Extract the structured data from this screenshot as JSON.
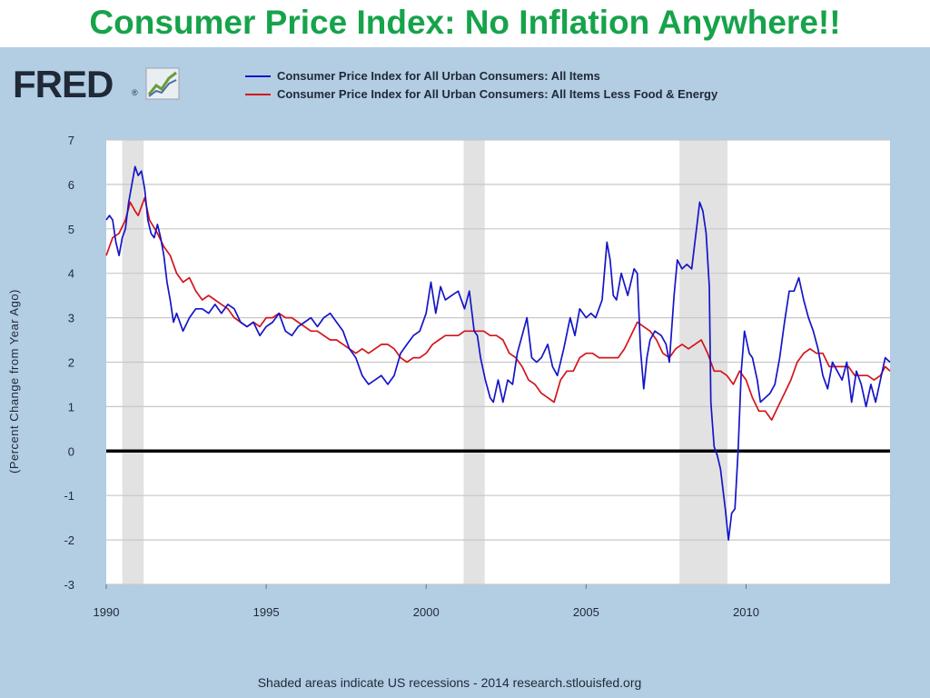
{
  "slide": {
    "title": "Consumer Price Index: No Inflation Anywhere!!"
  },
  "logo": {
    "text": "FRED",
    "mark": "®",
    "icon": "trend-chart-icon"
  },
  "colors": {
    "title_green": "#16a34a",
    "background_blue": "#b3cde3",
    "series_all_items": "#1515c8",
    "series_core": "#d4141c",
    "recession_shade": "#e2e2e2",
    "grid": "#c8c8c8",
    "zero_line": "#000000"
  },
  "footnote": "Shaded areas indicate US recessions - 2014 research.stlouisfed.org",
  "chart_data": {
    "type": "line",
    "title": "",
    "xlabel": "",
    "ylabel": "(Percent Change from Year Ago)",
    "xlim": [
      1990,
      2014.5
    ],
    "ylim": [
      -3,
      7
    ],
    "yticks": [
      7,
      6,
      5,
      4,
      3,
      2,
      1,
      0,
      -1,
      -2,
      -3
    ],
    "xticks": [
      1990,
      1995,
      2000,
      2005,
      2010
    ],
    "grid": true,
    "legend_position": "top",
    "zero_line": true,
    "recessions": [
      [
        1990.5,
        1991.17
      ],
      [
        2001.17,
        2001.83
      ],
      [
        2007.92,
        2009.42
      ]
    ],
    "series": [
      {
        "name": "Consumer Price Index for All Urban Consumers: All Items",
        "color": "#1515c8",
        "points": [
          [
            1990.0,
            5.2
          ],
          [
            1990.1,
            5.3
          ],
          [
            1990.2,
            5.2
          ],
          [
            1990.3,
            4.7
          ],
          [
            1990.4,
            4.4
          ],
          [
            1990.5,
            4.8
          ],
          [
            1990.6,
            5.0
          ],
          [
            1990.7,
            5.6
          ],
          [
            1990.8,
            6.0
          ],
          [
            1990.9,
            6.4
          ],
          [
            1991.0,
            6.2
          ],
          [
            1991.1,
            6.3
          ],
          [
            1991.2,
            5.9
          ],
          [
            1991.3,
            5.2
          ],
          [
            1991.4,
            4.9
          ],
          [
            1991.5,
            4.8
          ],
          [
            1991.6,
            5.1
          ],
          [
            1991.7,
            4.8
          ],
          [
            1991.8,
            4.4
          ],
          [
            1991.9,
            3.8
          ],
          [
            1992.0,
            3.4
          ],
          [
            1992.1,
            2.9
          ],
          [
            1992.2,
            3.1
          ],
          [
            1992.3,
            2.9
          ],
          [
            1992.4,
            2.7
          ],
          [
            1992.6,
            3.0
          ],
          [
            1992.8,
            3.2
          ],
          [
            1993.0,
            3.2
          ],
          [
            1993.2,
            3.1
          ],
          [
            1993.4,
            3.3
          ],
          [
            1993.6,
            3.1
          ],
          [
            1993.8,
            3.3
          ],
          [
            1994.0,
            3.2
          ],
          [
            1994.2,
            2.9
          ],
          [
            1994.4,
            2.8
          ],
          [
            1994.6,
            2.9
          ],
          [
            1994.8,
            2.6
          ],
          [
            1995.0,
            2.8
          ],
          [
            1995.2,
            2.9
          ],
          [
            1995.4,
            3.1
          ],
          [
            1995.6,
            2.7
          ],
          [
            1995.8,
            2.6
          ],
          [
            1996.0,
            2.8
          ],
          [
            1996.2,
            2.9
          ],
          [
            1996.4,
            3.0
          ],
          [
            1996.6,
            2.8
          ],
          [
            1996.8,
            3.0
          ],
          [
            1997.0,
            3.1
          ],
          [
            1997.2,
            2.9
          ],
          [
            1997.4,
            2.7
          ],
          [
            1997.6,
            2.3
          ],
          [
            1997.8,
            2.1
          ],
          [
            1998.0,
            1.7
          ],
          [
            1998.2,
            1.5
          ],
          [
            1998.4,
            1.6
          ],
          [
            1998.6,
            1.7
          ],
          [
            1998.8,
            1.5
          ],
          [
            1999.0,
            1.7
          ],
          [
            1999.2,
            2.2
          ],
          [
            1999.4,
            2.4
          ],
          [
            1999.6,
            2.6
          ],
          [
            1999.8,
            2.7
          ],
          [
            2000.0,
            3.1
          ],
          [
            2000.15,
            3.8
          ],
          [
            2000.3,
            3.1
          ],
          [
            2000.45,
            3.7
          ],
          [
            2000.6,
            3.4
          ],
          [
            2000.8,
            3.5
          ],
          [
            2001.0,
            3.6
          ],
          [
            2001.2,
            3.2
          ],
          [
            2001.35,
            3.6
          ],
          [
            2001.5,
            2.7
          ],
          [
            2001.6,
            2.6
          ],
          [
            2001.7,
            2.1
          ],
          [
            2001.85,
            1.6
          ],
          [
            2002.0,
            1.2
          ],
          [
            2002.1,
            1.1
          ],
          [
            2002.25,
            1.6
          ],
          [
            2002.4,
            1.1
          ],
          [
            2002.55,
            1.6
          ],
          [
            2002.7,
            1.5
          ],
          [
            2002.85,
            2.2
          ],
          [
            2003.0,
            2.6
          ],
          [
            2003.15,
            3.0
          ],
          [
            2003.3,
            2.1
          ],
          [
            2003.45,
            2.0
          ],
          [
            2003.6,
            2.1
          ],
          [
            2003.8,
            2.4
          ],
          [
            2003.95,
            1.9
          ],
          [
            2004.1,
            1.7
          ],
          [
            2004.3,
            2.3
          ],
          [
            2004.5,
            3.0
          ],
          [
            2004.65,
            2.6
          ],
          [
            2004.8,
            3.2
          ],
          [
            2005.0,
            3.0
          ],
          [
            2005.15,
            3.1
          ],
          [
            2005.3,
            3.0
          ],
          [
            2005.5,
            3.4
          ],
          [
            2005.65,
            4.7
          ],
          [
            2005.75,
            4.3
          ],
          [
            2005.85,
            3.5
          ],
          [
            2005.95,
            3.4
          ],
          [
            2006.1,
            4.0
          ],
          [
            2006.3,
            3.5
          ],
          [
            2006.5,
            4.1
          ],
          [
            2006.6,
            4.0
          ],
          [
            2006.7,
            2.3
          ],
          [
            2006.8,
            1.4
          ],
          [
            2006.9,
            2.1
          ],
          [
            2007.0,
            2.5
          ],
          [
            2007.15,
            2.7
          ],
          [
            2007.35,
            2.6
          ],
          [
            2007.5,
            2.4
          ],
          [
            2007.6,
            2.0
          ],
          [
            2007.75,
            3.5
          ],
          [
            2007.85,
            4.3
          ],
          [
            2008.0,
            4.1
          ],
          [
            2008.15,
            4.2
          ],
          [
            2008.3,
            4.1
          ],
          [
            2008.45,
            5.0
          ],
          [
            2008.55,
            5.6
          ],
          [
            2008.65,
            5.4
          ],
          [
            2008.75,
            4.9
          ],
          [
            2008.85,
            3.7
          ],
          [
            2008.9,
            1.1
          ],
          [
            2009.0,
            0.1
          ],
          [
            2009.1,
            -0.1
          ],
          [
            2009.2,
            -0.4
          ],
          [
            2009.35,
            -1.3
          ],
          [
            2009.45,
            -2.0
          ],
          [
            2009.55,
            -1.4
          ],
          [
            2009.65,
            -1.3
          ],
          [
            2009.75,
            0.0
          ],
          [
            2009.85,
            1.8
          ],
          [
            2009.95,
            2.7
          ],
          [
            2010.1,
            2.2
          ],
          [
            2010.2,
            2.1
          ],
          [
            2010.35,
            1.6
          ],
          [
            2010.45,
            1.1
          ],
          [
            2010.6,
            1.2
          ],
          [
            2010.75,
            1.3
          ],
          [
            2010.9,
            1.5
          ],
          [
            2011.05,
            2.1
          ],
          [
            2011.2,
            2.9
          ],
          [
            2011.35,
            3.6
          ],
          [
            2011.5,
            3.6
          ],
          [
            2011.65,
            3.9
          ],
          [
            2011.8,
            3.4
          ],
          [
            2011.95,
            3.0
          ],
          [
            2012.1,
            2.7
          ],
          [
            2012.25,
            2.3
          ],
          [
            2012.4,
            1.7
          ],
          [
            2012.55,
            1.4
          ],
          [
            2012.7,
            2.0
          ],
          [
            2012.85,
            1.8
          ],
          [
            2013.0,
            1.6
          ],
          [
            2013.15,
            2.0
          ],
          [
            2013.3,
            1.1
          ],
          [
            2013.45,
            1.8
          ],
          [
            2013.6,
            1.5
          ],
          [
            2013.75,
            1.0
          ],
          [
            2013.9,
            1.5
          ],
          [
            2014.05,
            1.1
          ],
          [
            2014.2,
            1.6
          ],
          [
            2014.35,
            2.1
          ],
          [
            2014.5,
            2.0
          ]
        ]
      },
      {
        "name": "Consumer Price Index for All Urban Consumers: All Items Less Food & Energy",
        "color": "#d4141c",
        "points": [
          [
            1990.0,
            4.4
          ],
          [
            1990.2,
            4.8
          ],
          [
            1990.4,
            4.9
          ],
          [
            1990.6,
            5.2
          ],
          [
            1990.75,
            5.6
          ],
          [
            1990.9,
            5.4
          ],
          [
            1991.0,
            5.3
          ],
          [
            1991.1,
            5.5
          ],
          [
            1991.2,
            5.7
          ],
          [
            1991.35,
            5.2
          ],
          [
            1991.6,
            4.9
          ],
          [
            1991.8,
            4.6
          ],
          [
            1992.0,
            4.4
          ],
          [
            1992.2,
            4.0
          ],
          [
            1992.4,
            3.8
          ],
          [
            1992.6,
            3.9
          ],
          [
            1992.8,
            3.6
          ],
          [
            1993.0,
            3.4
          ],
          [
            1993.2,
            3.5
          ],
          [
            1993.4,
            3.4
          ],
          [
            1993.6,
            3.3
          ],
          [
            1993.8,
            3.2
          ],
          [
            1994.0,
            3.0
          ],
          [
            1994.2,
            2.9
          ],
          [
            1994.4,
            2.8
          ],
          [
            1994.6,
            2.9
          ],
          [
            1994.8,
            2.8
          ],
          [
            1995.0,
            3.0
          ],
          [
            1995.2,
            3.0
          ],
          [
            1995.4,
            3.1
          ],
          [
            1995.6,
            3.0
          ],
          [
            1995.8,
            3.0
          ],
          [
            1996.0,
            2.9
          ],
          [
            1996.2,
            2.8
          ],
          [
            1996.4,
            2.7
          ],
          [
            1996.6,
            2.7
          ],
          [
            1996.8,
            2.6
          ],
          [
            1997.0,
            2.5
          ],
          [
            1997.2,
            2.5
          ],
          [
            1997.4,
            2.4
          ],
          [
            1997.6,
            2.3
          ],
          [
            1997.8,
            2.2
          ],
          [
            1998.0,
            2.3
          ],
          [
            1998.2,
            2.2
          ],
          [
            1998.4,
            2.3
          ],
          [
            1998.6,
            2.4
          ],
          [
            1998.8,
            2.4
          ],
          [
            1999.0,
            2.3
          ],
          [
            1999.2,
            2.1
          ],
          [
            1999.4,
            2.0
          ],
          [
            1999.6,
            2.1
          ],
          [
            1999.8,
            2.1
          ],
          [
            2000.0,
            2.2
          ],
          [
            2000.2,
            2.4
          ],
          [
            2000.4,
            2.5
          ],
          [
            2000.6,
            2.6
          ],
          [
            2000.8,
            2.6
          ],
          [
            2001.0,
            2.6
          ],
          [
            2001.2,
            2.7
          ],
          [
            2001.4,
            2.7
          ],
          [
            2001.6,
            2.7
          ],
          [
            2001.8,
            2.7
          ],
          [
            2002.0,
            2.6
          ],
          [
            2002.2,
            2.6
          ],
          [
            2002.4,
            2.5
          ],
          [
            2002.6,
            2.2
          ],
          [
            2002.8,
            2.1
          ],
          [
            2003.0,
            1.9
          ],
          [
            2003.2,
            1.6
          ],
          [
            2003.4,
            1.5
          ],
          [
            2003.6,
            1.3
          ],
          [
            2003.8,
            1.2
          ],
          [
            2004.0,
            1.1
          ],
          [
            2004.2,
            1.6
          ],
          [
            2004.4,
            1.8
          ],
          [
            2004.6,
            1.8
          ],
          [
            2004.8,
            2.1
          ],
          [
            2005.0,
            2.2
          ],
          [
            2005.2,
            2.2
          ],
          [
            2005.4,
            2.1
          ],
          [
            2005.6,
            2.1
          ],
          [
            2005.8,
            2.1
          ],
          [
            2006.0,
            2.1
          ],
          [
            2006.2,
            2.3
          ],
          [
            2006.4,
            2.6
          ],
          [
            2006.6,
            2.9
          ],
          [
            2006.8,
            2.8
          ],
          [
            2007.0,
            2.7
          ],
          [
            2007.2,
            2.5
          ],
          [
            2007.4,
            2.2
          ],
          [
            2007.6,
            2.1
          ],
          [
            2007.8,
            2.3
          ],
          [
            2008.0,
            2.4
          ],
          [
            2008.2,
            2.3
          ],
          [
            2008.4,
            2.4
          ],
          [
            2008.6,
            2.5
          ],
          [
            2008.8,
            2.2
          ],
          [
            2009.0,
            1.8
          ],
          [
            2009.2,
            1.8
          ],
          [
            2009.4,
            1.7
          ],
          [
            2009.6,
            1.5
          ],
          [
            2009.8,
            1.8
          ],
          [
            2010.0,
            1.6
          ],
          [
            2010.2,
            1.2
          ],
          [
            2010.4,
            0.9
          ],
          [
            2010.6,
            0.9
          ],
          [
            2010.8,
            0.7
          ],
          [
            2011.0,
            1.0
          ],
          [
            2011.2,
            1.3
          ],
          [
            2011.4,
            1.6
          ],
          [
            2011.6,
            2.0
          ],
          [
            2011.8,
            2.2
          ],
          [
            2012.0,
            2.3
          ],
          [
            2012.2,
            2.2
          ],
          [
            2012.4,
            2.2
          ],
          [
            2012.6,
            1.9
          ],
          [
            2012.8,
            1.9
          ],
          [
            2013.0,
            1.9
          ],
          [
            2013.2,
            1.9
          ],
          [
            2013.4,
            1.7
          ],
          [
            2013.6,
            1.7
          ],
          [
            2013.8,
            1.7
          ],
          [
            2014.0,
            1.6
          ],
          [
            2014.2,
            1.7
          ],
          [
            2014.35,
            1.9
          ],
          [
            2014.5,
            1.8
          ]
        ]
      }
    ]
  }
}
